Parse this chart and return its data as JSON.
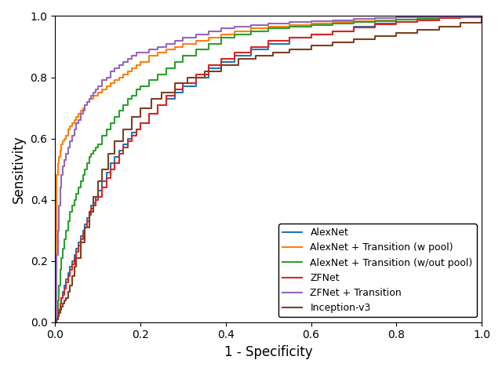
{
  "title": "",
  "xlabel": "1 - Specificity",
  "ylabel": "Sensitivity",
  "xlim": [
    0.0,
    1.0
  ],
  "ylim": [
    0.0,
    1.0
  ],
  "legend_labels": [
    "AlexNet",
    "AlexNet + Transition (w pool)",
    "AlexNet + Transition (w/out pool)",
    "ZFNet",
    "ZFNet + Transition",
    "Inception-v3"
  ],
  "colors": [
    "#1f77b4",
    "#ff7f0e",
    "#2ca02c",
    "#d62728",
    "#9467bd",
    "#7f3f1f"
  ],
  "figsize": [
    6.4,
    4.73
  ],
  "dpi": 100,
  "n_points": 60,
  "curves": {
    "AlexNet": {
      "auc_shape": 0.88,
      "fpr": [
        0.0,
        0.003,
        0.006,
        0.009,
        0.012,
        0.015,
        0.018,
        0.021,
        0.025,
        0.03,
        0.035,
        0.04,
        0.045,
        0.05,
        0.055,
        0.06,
        0.065,
        0.07,
        0.075,
        0.08,
        0.085,
        0.09,
        0.095,
        0.1,
        0.11,
        0.12,
        0.13,
        0.14,
        0.15,
        0.16,
        0.17,
        0.18,
        0.19,
        0.2,
        0.22,
        0.24,
        0.26,
        0.28,
        0.3,
        0.33,
        0.36,
        0.39,
        0.42,
        0.46,
        0.5,
        0.55,
        0.6,
        0.65,
        0.7,
        0.75,
        0.8,
        0.85,
        0.9,
        0.95,
        1.0
      ],
      "tpr": [
        0.0,
        0.01,
        0.02,
        0.04,
        0.06,
        0.08,
        0.1,
        0.12,
        0.14,
        0.16,
        0.18,
        0.2,
        0.22,
        0.24,
        0.26,
        0.28,
        0.3,
        0.32,
        0.34,
        0.36,
        0.38,
        0.39,
        0.41,
        0.43,
        0.46,
        0.49,
        0.52,
        0.54,
        0.56,
        0.58,
        0.6,
        0.62,
        0.63,
        0.65,
        0.68,
        0.71,
        0.73,
        0.75,
        0.77,
        0.8,
        0.83,
        0.85,
        0.87,
        0.89,
        0.91,
        0.93,
        0.94,
        0.95,
        0.965,
        0.975,
        0.982,
        0.988,
        0.993,
        0.997,
        1.0
      ]
    },
    "AlexNet_w_pool": {
      "fpr": [
        0.0,
        0.003,
        0.006,
        0.009,
        0.012,
        0.015,
        0.018,
        0.021,
        0.025,
        0.03,
        0.035,
        0.04,
        0.045,
        0.05,
        0.055,
        0.06,
        0.065,
        0.07,
        0.075,
        0.08,
        0.085,
        0.09,
        0.095,
        0.1,
        0.11,
        0.12,
        0.13,
        0.14,
        0.15,
        0.16,
        0.17,
        0.18,
        0.19,
        0.2,
        0.22,
        0.24,
        0.26,
        0.28,
        0.3,
        0.33,
        0.36,
        0.39,
        0.42,
        0.46,
        0.5,
        0.55,
        0.6,
        0.65,
        0.7,
        0.75,
        0.8,
        0.85,
        0.9,
        0.95,
        1.0
      ],
      "tpr": [
        0.0,
        0.48,
        0.52,
        0.54,
        0.56,
        0.58,
        0.59,
        0.6,
        0.61,
        0.63,
        0.64,
        0.65,
        0.66,
        0.67,
        0.68,
        0.69,
        0.7,
        0.71,
        0.72,
        0.73,
        0.73,
        0.74,
        0.74,
        0.75,
        0.76,
        0.77,
        0.78,
        0.79,
        0.8,
        0.81,
        0.82,
        0.83,
        0.84,
        0.85,
        0.87,
        0.88,
        0.89,
        0.9,
        0.91,
        0.92,
        0.93,
        0.94,
        0.95,
        0.96,
        0.965,
        0.97,
        0.975,
        0.98,
        0.983,
        0.986,
        0.989,
        0.992,
        0.995,
        0.998,
        1.0
      ]
    },
    "AlexNet_wout_pool": {
      "fpr": [
        0.0,
        0.003,
        0.006,
        0.009,
        0.012,
        0.015,
        0.018,
        0.021,
        0.025,
        0.03,
        0.035,
        0.04,
        0.045,
        0.05,
        0.055,
        0.06,
        0.065,
        0.07,
        0.075,
        0.08,
        0.085,
        0.09,
        0.095,
        0.1,
        0.11,
        0.12,
        0.13,
        0.14,
        0.15,
        0.16,
        0.17,
        0.18,
        0.19,
        0.2,
        0.22,
        0.24,
        0.26,
        0.28,
        0.3,
        0.33,
        0.36,
        0.39,
        0.42,
        0.46,
        0.5,
        0.55,
        0.6,
        0.65,
        0.7,
        0.75,
        0.8,
        0.85,
        0.9,
        0.95,
        1.0
      ],
      "tpr": [
        0.0,
        0.02,
        0.07,
        0.12,
        0.17,
        0.21,
        0.24,
        0.27,
        0.3,
        0.33,
        0.36,
        0.38,
        0.4,
        0.42,
        0.44,
        0.46,
        0.48,
        0.5,
        0.52,
        0.54,
        0.55,
        0.56,
        0.57,
        0.58,
        0.61,
        0.63,
        0.65,
        0.67,
        0.69,
        0.71,
        0.73,
        0.74,
        0.76,
        0.77,
        0.79,
        0.81,
        0.83,
        0.85,
        0.87,
        0.89,
        0.91,
        0.93,
        0.94,
        0.95,
        0.96,
        0.965,
        0.97,
        0.975,
        0.98,
        0.984,
        0.988,
        0.992,
        0.995,
        0.998,
        1.0
      ]
    },
    "ZFNet": {
      "fpr": [
        0.0,
        0.003,
        0.006,
        0.009,
        0.012,
        0.015,
        0.018,
        0.021,
        0.025,
        0.03,
        0.035,
        0.04,
        0.045,
        0.05,
        0.055,
        0.06,
        0.065,
        0.07,
        0.075,
        0.08,
        0.085,
        0.09,
        0.095,
        0.1,
        0.11,
        0.12,
        0.13,
        0.14,
        0.15,
        0.16,
        0.17,
        0.18,
        0.19,
        0.2,
        0.22,
        0.24,
        0.26,
        0.28,
        0.3,
        0.33,
        0.36,
        0.39,
        0.42,
        0.46,
        0.5,
        0.55,
        0.6,
        0.65,
        0.7,
        0.75,
        0.8,
        0.85,
        0.9,
        0.95,
        1.0
      ],
      "tpr": [
        0.0,
        0.01,
        0.02,
        0.04,
        0.06,
        0.08,
        0.09,
        0.11,
        0.13,
        0.15,
        0.17,
        0.19,
        0.21,
        0.23,
        0.25,
        0.27,
        0.29,
        0.31,
        0.33,
        0.35,
        0.37,
        0.38,
        0.4,
        0.41,
        0.44,
        0.47,
        0.5,
        0.52,
        0.55,
        0.57,
        0.59,
        0.61,
        0.63,
        0.65,
        0.68,
        0.71,
        0.74,
        0.76,
        0.78,
        0.81,
        0.84,
        0.86,
        0.88,
        0.9,
        0.92,
        0.93,
        0.94,
        0.95,
        0.963,
        0.972,
        0.98,
        0.987,
        0.993,
        0.997,
        1.0
      ]
    },
    "ZFNet_transition": {
      "fpr": [
        0.0,
        0.003,
        0.006,
        0.009,
        0.012,
        0.015,
        0.018,
        0.021,
        0.025,
        0.03,
        0.035,
        0.04,
        0.045,
        0.05,
        0.055,
        0.06,
        0.065,
        0.07,
        0.075,
        0.08,
        0.085,
        0.09,
        0.095,
        0.1,
        0.11,
        0.12,
        0.13,
        0.14,
        0.15,
        0.16,
        0.17,
        0.18,
        0.19,
        0.2,
        0.22,
        0.24,
        0.26,
        0.28,
        0.3,
        0.33,
        0.36,
        0.39,
        0.42,
        0.46,
        0.5,
        0.55,
        0.6,
        0.65,
        0.7,
        0.75,
        0.8,
        0.85,
        0.9,
        0.95,
        1.0
      ],
      "tpr": [
        0.0,
        0.22,
        0.3,
        0.38,
        0.44,
        0.48,
        0.51,
        0.53,
        0.55,
        0.57,
        0.59,
        0.61,
        0.63,
        0.65,
        0.66,
        0.68,
        0.69,
        0.71,
        0.72,
        0.73,
        0.74,
        0.75,
        0.76,
        0.77,
        0.79,
        0.8,
        0.82,
        0.83,
        0.84,
        0.85,
        0.86,
        0.87,
        0.88,
        0.88,
        0.89,
        0.9,
        0.91,
        0.92,
        0.93,
        0.94,
        0.95,
        0.96,
        0.965,
        0.97,
        0.975,
        0.98,
        0.984,
        0.987,
        0.99,
        0.993,
        0.995,
        0.997,
        0.998,
        0.999,
        1.0
      ]
    },
    "Inception_v3": {
      "fpr": [
        0.0,
        0.003,
        0.006,
        0.009,
        0.012,
        0.015,
        0.018,
        0.021,
        0.025,
        0.03,
        0.035,
        0.04,
        0.045,
        0.05,
        0.06,
        0.07,
        0.08,
        0.09,
        0.1,
        0.11,
        0.125,
        0.14,
        0.16,
        0.18,
        0.2,
        0.225,
        0.25,
        0.28,
        0.31,
        0.35,
        0.39,
        0.43,
        0.47,
        0.51,
        0.55,
        0.6,
        0.65,
        0.7,
        0.75,
        0.8,
        0.85,
        0.9,
        0.95,
        1.0
      ],
      "tpr": [
        0.0,
        0.01,
        0.02,
        0.03,
        0.04,
        0.05,
        0.06,
        0.07,
        0.08,
        0.1,
        0.12,
        0.15,
        0.18,
        0.21,
        0.26,
        0.31,
        0.36,
        0.41,
        0.46,
        0.5,
        0.55,
        0.59,
        0.63,
        0.67,
        0.7,
        0.73,
        0.75,
        0.78,
        0.8,
        0.82,
        0.84,
        0.86,
        0.87,
        0.88,
        0.89,
        0.905,
        0.915,
        0.925,
        0.935,
        0.945,
        0.955,
        0.965,
        0.978,
        1.0
      ]
    }
  }
}
